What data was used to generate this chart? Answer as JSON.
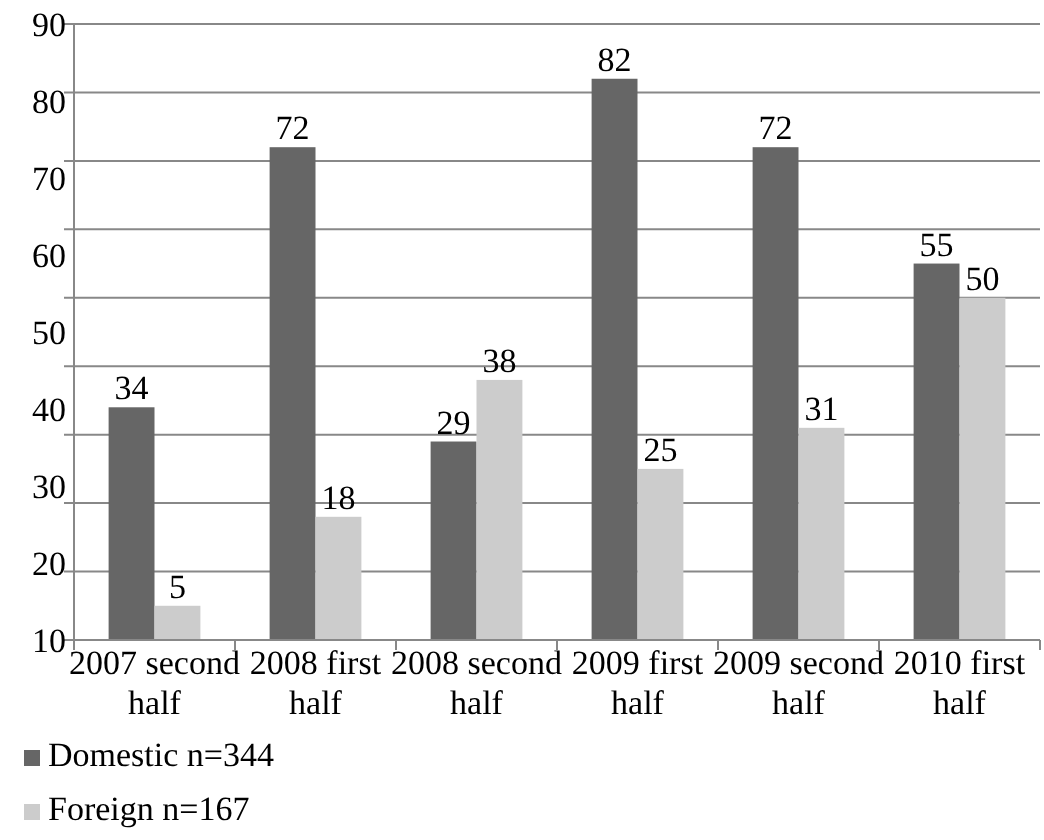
{
  "chart_data": {
    "type": "bar",
    "categories": [
      "2007 second half",
      "2008 first half",
      "2008 second half",
      "2009 first half",
      "2009 second half",
      "2010 first half"
    ],
    "series": [
      {
        "name": "Domestic n=344",
        "color": "#666666",
        "values": [
          34,
          72,
          29,
          82,
          72,
          55
        ]
      },
      {
        "name": "Foreign n=167",
        "color": "#cccccc",
        "values": [
          5,
          18,
          38,
          25,
          31,
          50
        ]
      }
    ],
    "ylim": [
      0,
      90
    ],
    "yticks": [
      {
        "value": 0,
        "label": null
      },
      {
        "value": 10,
        "label": null
      },
      {
        "value": 20,
        "label": null
      },
      {
        "value": 30,
        "label": null
      },
      {
        "value": 40,
        "label": null
      },
      {
        "value": 50,
        "label": null
      },
      {
        "value": 60,
        "label": null
      },
      {
        "value": 70,
        "label": null
      },
      {
        "value": 80,
        "label": null
      },
      {
        "value": 90,
        "label": null
      }
    ],
    "tick_labels": "x",
    "annotations": [
      "10",
      "20",
      "30",
      "40",
      "50",
      "60",
      "70",
      "80",
      "90"
    ],
    "grid": "y",
    "data_labels": true,
    "legend": "bottom"
  }
}
